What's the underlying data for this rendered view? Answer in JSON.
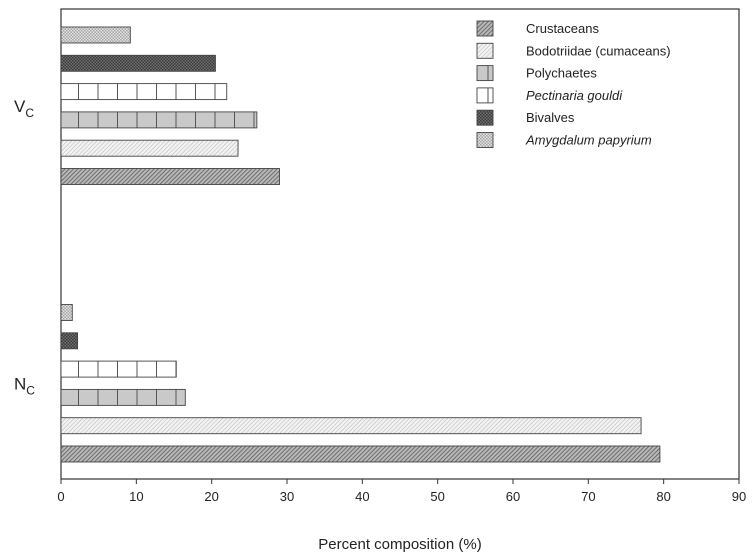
{
  "chart_data": {
    "type": "bar",
    "orientation": "horizontal",
    "xlabel": "Percent composition (%)",
    "xlim": [
      0,
      90
    ],
    "xticks": [
      0,
      10,
      20,
      30,
      40,
      50,
      60,
      70,
      80,
      90
    ],
    "grid": false,
    "legend_position": "top-right",
    "categories": [
      {
        "label": "V",
        "subscript": "C"
      },
      {
        "label": "N",
        "subscript": "C"
      }
    ],
    "series": [
      {
        "name": "Crustaceans",
        "italic": false,
        "pattern": "dense-diagonal",
        "values": [
          29,
          79.5
        ]
      },
      {
        "name": "Bodotriidae (cumaceans)",
        "italic": false,
        "pattern": "light-diagonal",
        "values": [
          23.5,
          77
        ]
      },
      {
        "name": "Polychaetes",
        "italic": false,
        "pattern": "grey-vertical",
        "values": [
          26,
          16.5
        ]
      },
      {
        "name": "Pectinaria gouldi",
        "italic": true,
        "pattern": "white-vertical",
        "values": [
          22,
          15.3
        ]
      },
      {
        "name": "Bivalves",
        "italic": false,
        "pattern": "dark-crosshatch",
        "values": [
          20.5,
          2.2
        ]
      },
      {
        "name": "Amygdalum papyrium",
        "italic": true,
        "pattern": "light-crosshatch",
        "values": [
          9.2,
          1.5
        ]
      }
    ]
  }
}
